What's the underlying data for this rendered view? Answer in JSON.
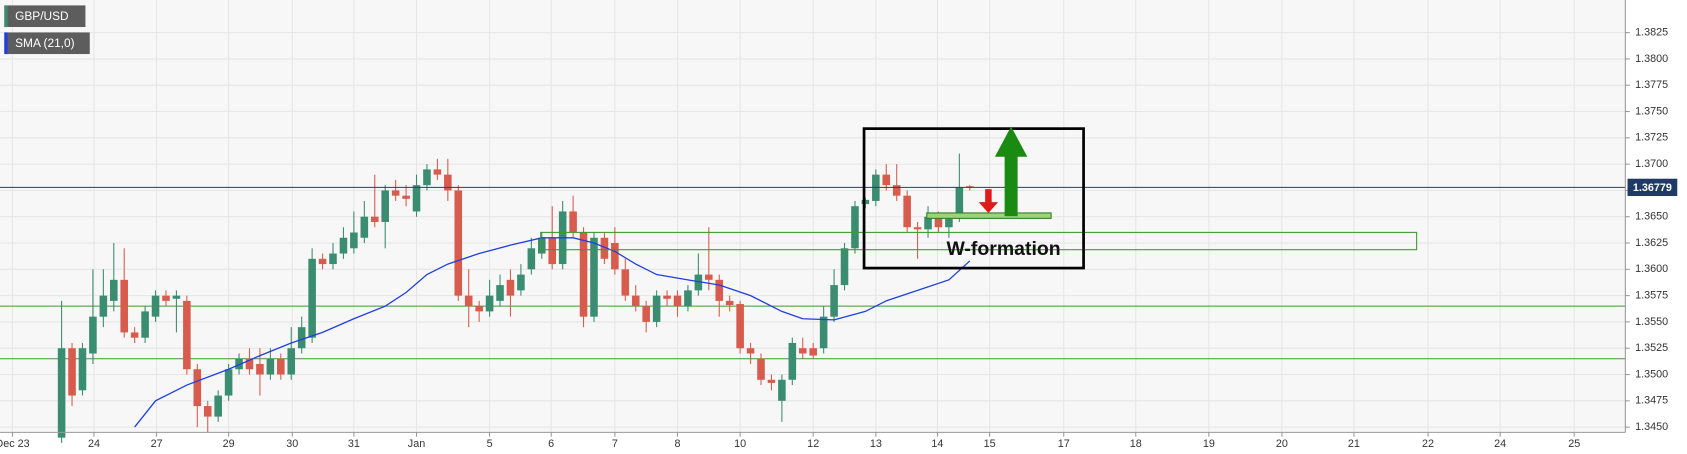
{
  "chart_data": {
    "type": "candlestick",
    "title": "GBP/USD",
    "xlim": [
      -5.9,
      149.8
    ],
    "xticks": [
      {
        "value": -4.7,
        "label": "Dec 23"
      },
      {
        "value": 3.1,
        "label": "24"
      },
      {
        "value": 9.1,
        "label": "27"
      },
      {
        "value": 16.0,
        "label": "29"
      },
      {
        "value": 22.1,
        "label": "30"
      },
      {
        "value": 28.0,
        "label": "31"
      },
      {
        "value": 34.0,
        "label": "Jan"
      },
      {
        "value": 41.0,
        "label": "5"
      },
      {
        "value": 46.9,
        "label": "6"
      },
      {
        "value": 53.0,
        "label": "7"
      },
      {
        "value": 59.0,
        "label": "8"
      },
      {
        "value": 65.0,
        "label": "10"
      },
      {
        "value": 72.0,
        "label": "12"
      },
      {
        "value": 78.0,
        "label": "13"
      },
      {
        "value": 83.9,
        "label": "14"
      },
      {
        "value": 88.9,
        "label": "15"
      },
      {
        "value": 96.0,
        "label": "17"
      },
      {
        "value": 102.9,
        "label": "18"
      },
      {
        "value": 109.9,
        "label": "19"
      },
      {
        "value": 116.9,
        "label": "20"
      },
      {
        "value": 123.8,
        "label": "21"
      },
      {
        "value": 130.9,
        "label": "22"
      },
      {
        "value": 137.8,
        "label": "24"
      },
      {
        "value": 144.9,
        "label": "25"
      }
    ],
    "ylim": [
      1.3445,
      1.3856
    ],
    "yticks": [
      {
        "value": 1.345,
        "label": "1.3450"
      },
      1.3475,
      {
        "value": 1.35,
        "label": "1.3500"
      },
      1.3525,
      {
        "value": 1.355,
        "label": "1.3550"
      },
      1.3575,
      {
        "value": 1.36,
        "label": "1.3600"
      },
      1.3625,
      {
        "value": 1.365,
        "label": "1.3650"
      },
      1.3675,
      {
        "value": 1.37,
        "label": "1.3700"
      },
      1.3725,
      {
        "value": 1.375,
        "label": "1.3750"
      },
      1.3775,
      {
        "value": 1.38,
        "label": "1.3800"
      },
      1.3825
    ],
    "grid": true,
    "up_color": "#3b8d72",
    "down_color": "#d85c4e",
    "open": [
      1.344,
      1.3525,
      1.3485,
      1.352,
      1.3555,
      1.357,
      1.359,
      1.354,
      1.3535,
      1.3555,
      1.3575,
      1.3572,
      1.357,
      1.3505,
      1.347,
      1.346,
      1.348,
      1.3505,
      1.3515,
      1.351,
      1.35,
      1.3515,
      1.35,
      1.3525,
      1.3535,
      1.361,
      1.3605,
      1.3615,
      1.362,
      1.363,
      1.365,
      1.3645,
      1.3675,
      1.367,
      1.3655,
      1.368,
      1.3695,
      1.369,
      1.3675,
      1.3575,
      1.3565,
      1.356,
      1.357,
      1.359,
      1.358,
      1.36,
      1.3615,
      1.363,
      1.3605,
      1.3655,
      1.3635,
      1.3555,
      1.363,
      1.3625,
      1.36,
      1.3575,
      1.3565,
      1.355,
      1.3575,
      1.3575,
      1.3565,
      1.358,
      1.3595,
      1.359,
      1.357,
      1.3567,
      1.3525,
      1.3515,
      1.3495,
      1.3475,
      1.3495,
      1.3525,
      1.3525,
      1.3525,
      1.3555,
      1.3585,
      1.362,
      1.3662,
      1.3665,
      1.369,
      1.368,
      1.367,
      1.364,
      1.3638,
      1.365,
      1.364,
      1.365,
      1.3679
    ],
    "high": [
      1.357,
      1.353,
      1.353,
      1.36,
      1.36,
      1.3625,
      1.362,
      1.3545,
      1.3565,
      1.358,
      1.358,
      1.358,
      1.3575,
      1.351,
      1.3475,
      1.3485,
      1.351,
      1.352,
      1.3525,
      1.3525,
      1.3525,
      1.352,
      1.3545,
      1.3555,
      1.362,
      1.3615,
      1.3625,
      1.364,
      1.3655,
      1.3665,
      1.369,
      1.368,
      1.3685,
      1.368,
      1.369,
      1.37,
      1.3705,
      1.3705,
      1.368,
      1.36,
      1.357,
      1.359,
      1.3595,
      1.36,
      1.3605,
      1.363,
      1.3635,
      1.366,
      1.3665,
      1.367,
      1.364,
      1.3635,
      1.3635,
      1.364,
      1.361,
      1.3585,
      1.357,
      1.358,
      1.358,
      1.358,
      1.3585,
      1.3615,
      1.364,
      1.3595,
      1.3575,
      1.357,
      1.353,
      1.352,
      1.35,
      1.35,
      1.3535,
      1.3535,
      1.353,
      1.3565,
      1.36,
      1.3625,
      1.3665,
      1.3668,
      1.3695,
      1.37,
      1.37,
      1.3675,
      1.3645,
      1.366,
      1.3655,
      1.365,
      1.371,
      1.368
    ],
    "low": [
      1.3435,
      1.347,
      1.348,
      1.351,
      1.3545,
      1.356,
      1.3535,
      1.353,
      1.353,
      1.355,
      1.3565,
      1.354,
      1.35,
      1.345,
      1.3445,
      1.3455,
      1.3475,
      1.35,
      1.35,
      1.348,
      1.3495,
      1.3495,
      1.3495,
      1.352,
      1.353,
      1.36,
      1.36,
      1.361,
      1.3615,
      1.3625,
      1.364,
      1.362,
      1.3665,
      1.366,
      1.365,
      1.3675,
      1.3685,
      1.3665,
      1.357,
      1.3545,
      1.355,
      1.3555,
      1.3565,
      1.3555,
      1.3575,
      1.3595,
      1.361,
      1.36,
      1.36,
      1.363,
      1.3545,
      1.355,
      1.3605,
      1.3595,
      1.357,
      1.356,
      1.354,
      1.3545,
      1.3565,
      1.3555,
      1.356,
      1.3575,
      1.358,
      1.3555,
      1.356,
      1.352,
      1.351,
      1.349,
      1.3485,
      1.3455,
      1.349,
      1.3515,
      1.3515,
      1.352,
      1.355,
      1.358,
      1.3615,
      1.3658,
      1.366,
      1.3675,
      1.3665,
      1.3635,
      1.361,
      1.363,
      1.3635,
      1.363,
      1.3645,
      1.3675
    ],
    "close": [
      1.3525,
      1.348,
      1.3525,
      1.3555,
      1.3575,
      1.359,
      1.354,
      1.3535,
      1.356,
      1.3575,
      1.357,
      1.3575,
      1.3505,
      1.347,
      1.346,
      1.348,
      1.3505,
      1.3515,
      1.3505,
      1.35,
      1.3515,
      1.35,
      1.3525,
      1.3545,
      1.361,
      1.3605,
      1.3615,
      1.363,
      1.3635,
      1.365,
      1.3645,
      1.3675,
      1.367,
      1.3667,
      1.368,
      1.3695,
      1.369,
      1.3675,
      1.3575,
      1.3565,
      1.356,
      1.3575,
      1.3585,
      1.3575,
      1.3595,
      1.362,
      1.363,
      1.3605,
      1.3655,
      1.3635,
      1.3555,
      1.363,
      1.361,
      1.36,
      1.3575,
      1.3565,
      1.355,
      1.3575,
      1.3572,
      1.3565,
      1.358,
      1.3595,
      1.359,
      1.357,
      1.3566,
      1.3525,
      1.352,
      1.3495,
      1.3492,
      1.3495,
      1.353,
      1.352,
      1.3518,
      1.3555,
      1.3585,
      1.362,
      1.366,
      1.3666,
      1.369,
      1.368,
      1.367,
      1.364,
      1.3638,
      1.365,
      1.364,
      1.3648,
      1.3678,
      1.3678
    ],
    "sma": {
      "name": "SMA (21,0)",
      "color": "#1f3fe0",
      "x": [
        7,
        9,
        12,
        16,
        19,
        22,
        25,
        28,
        31,
        33,
        35,
        37,
        40,
        43,
        46,
        49,
        51,
        53,
        55,
        57,
        60,
        63,
        66,
        69,
        71,
        74,
        77,
        79,
        82,
        85,
        87
      ],
      "values": [
        1.345,
        1.3475,
        1.349,
        1.3505,
        1.3518,
        1.353,
        1.354,
        1.3553,
        1.3565,
        1.3578,
        1.3595,
        1.3605,
        1.3615,
        1.3623,
        1.363,
        1.363,
        1.3625,
        1.3617,
        1.3605,
        1.3595,
        1.359,
        1.3585,
        1.3575,
        1.356,
        1.3553,
        1.3552,
        1.356,
        1.357,
        1.358,
        1.359,
        1.3608
      ]
    },
    "levels": [
      1.3565,
      1.3515
    ],
    "level_color": "#3d9a2f",
    "last_price": 1.36779,
    "annotation": "W-formation"
  }
}
